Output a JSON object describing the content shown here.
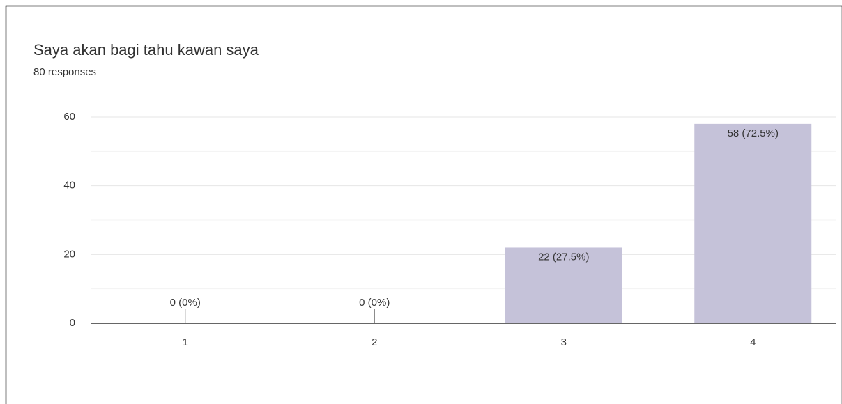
{
  "chart_data": {
    "type": "bar",
    "title": "Saya akan bagi tahu kawan saya",
    "subtitle": "80 responses",
    "categories": [
      "1",
      "2",
      "3",
      "4"
    ],
    "values": [
      0,
      0,
      22,
      58
    ],
    "value_labels": [
      "0 (0%)",
      "0 (0%)",
      "22 (27.5%)",
      "58 (72.5%)"
    ],
    "color": "#c5c2d9",
    "ylim": [
      0,
      60
    ],
    "yticks": [
      0,
      20,
      40,
      60
    ],
    "yticks_minor": [
      10,
      30,
      50
    ],
    "grid": true
  }
}
